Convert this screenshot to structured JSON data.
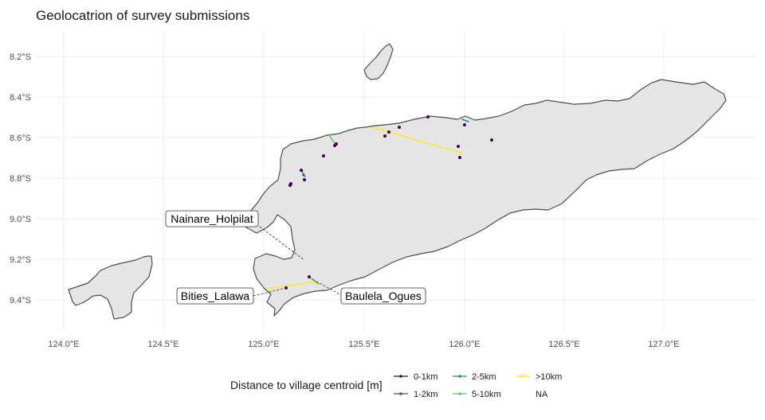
{
  "title": "Geolocatrion of survey submissions",
  "axes": {
    "y_ticks": [
      "8.2°S",
      "8.4°S",
      "8.6°S",
      "8.8°S",
      "9.0°S",
      "9.2°S",
      "9.4°S"
    ],
    "x_ticks": [
      "124.0°E",
      "124.5°E",
      "125.0°E",
      "125.5°E",
      "126.0°E",
      "126.5°E",
      "127.0°E"
    ]
  },
  "colors": {
    "land_fill": "#e5e5e5",
    "land_stroke": "#4d4d4d",
    "grid": "#ebebeb",
    "cat_0_1km": "#440154",
    "cat_1_2km": "#3b528b",
    "cat_2_5km": "#21908c",
    "cat_5_10km": "#5dc863",
    "cat_gt10km": "#fde725"
  },
  "callouts": {
    "nainare": "Nainare_Holpilat",
    "bities": "Bities_Lalawa",
    "baulela": "Baulela_Ogues"
  },
  "legend": {
    "title": "Distance to village centroid [m]",
    "items": [
      "0-1km",
      "1-2km",
      "2-5km",
      "5-10km",
      ">10km",
      "NA"
    ]
  }
}
